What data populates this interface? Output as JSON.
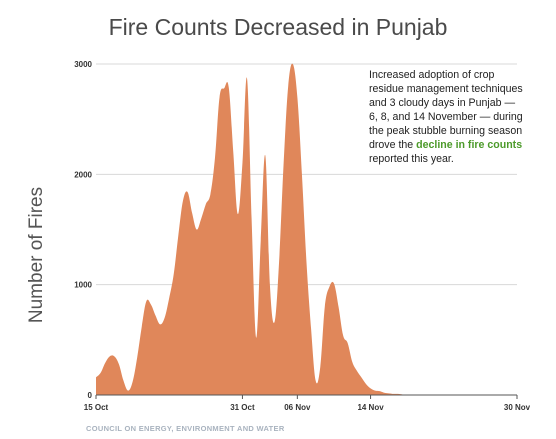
{
  "header": {
    "title": "Fire Counts Decreased in Punjab"
  },
  "annotation": {
    "text_before": "Increased adoption of crop residue management techniques and 3 cloudy days in Punjab — 6, 8, and 14 November — during the peak stubble burning season drove the ",
    "highlight": "decline in fire counts",
    "text_after": " reported this year.",
    "highlight_color": "#4c9a2a"
  },
  "footer": {
    "source": "COUNCIL ON ENERGY, ENVIRONMENT AND WATER"
  },
  "chart_data": {
    "type": "area",
    "title": "Fire Counts Decreased in Punjab",
    "xlabel": "",
    "ylabel": "Number of Fires",
    "ylim": [
      0,
      3000
    ],
    "yticks": [
      "0",
      "1000",
      "2000",
      "3000"
    ],
    "xticks": [
      {
        "label": "15 Oct",
        "day": 0
      },
      {
        "label": "31 Oct",
        "day": 16
      },
      {
        "label": "06 Nov",
        "day": 22
      },
      {
        "label": "14 Nov",
        "day": 30
      },
      {
        "label": "30 Nov",
        "day": 46
      }
    ],
    "fill_color": "#e0875a",
    "grid": "horizontal",
    "x": [
      0,
      0.5,
      1,
      1.5,
      2,
      2.5,
      3,
      3.5,
      4,
      4.5,
      5,
      5.5,
      6,
      6.5,
      7,
      7.5,
      8,
      8.5,
      9,
      9.5,
      10,
      10.5,
      11,
      11.5,
      12,
      12.5,
      13,
      13.5,
      14,
      14.5,
      15,
      15.5,
      16,
      16.5,
      17,
      17.5,
      18,
      18.5,
      19,
      19.5,
      20,
      20.5,
      21,
      21.5,
      22,
      22.5,
      23,
      23.5,
      24,
      24.5,
      25,
      25.5,
      26,
      26.5,
      27,
      27.5,
      28,
      28.5,
      29,
      29.5,
      30,
      30.5,
      31,
      31.5,
      32,
      32.5,
      33,
      33.5,
      34,
      34.5,
      35,
      35.5,
      36,
      36.5,
      37,
      37.5,
      38,
      38.5,
      39,
      39.5,
      40,
      41,
      42,
      43,
      44,
      45,
      46
    ],
    "values": [
      160,
      200,
      290,
      350,
      350,
      280,
      130,
      40,
      120,
      340,
      620,
      850,
      820,
      720,
      640,
      700,
      880,
      1100,
      1450,
      1760,
      1840,
      1650,
      1500,
      1600,
      1730,
      1820,
      2150,
      2700,
      2780,
      2790,
      2200,
      1640,
      2100,
      2870,
      1600,
      520,
      1400,
      2170,
      1000,
      660,
      1200,
      2100,
      2800,
      3000,
      2700,
      2000,
      1200,
      600,
      130,
      250,
      800,
      980,
      1010,
      800,
      540,
      470,
      300,
      220,
      160,
      100,
      60,
      40,
      35,
      20,
      15,
      10,
      10,
      5,
      5,
      5,
      5,
      5,
      5,
      5,
      5,
      5,
      5,
      5,
      5,
      5,
      5,
      5,
      5,
      5,
      5,
      5,
      5
    ]
  }
}
